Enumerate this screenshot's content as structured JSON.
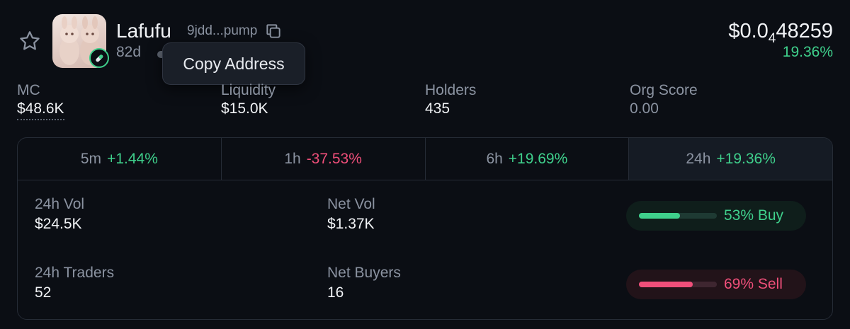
{
  "token": {
    "name": "Lafufu",
    "address": "9jdd...pump",
    "age": "82d",
    "price_main": "$0.0",
    "price_zero_count": "4",
    "price_tail": "48259",
    "price_change": "19.36%"
  },
  "tooltip": {
    "text": "Copy Address"
  },
  "stats": [
    {
      "label": "MC",
      "value": "$48.6K"
    },
    {
      "label": "Liquidity",
      "value": "$15.0K"
    },
    {
      "label": "Holders",
      "value": "435"
    },
    {
      "label": "Org Score",
      "value": "0.00"
    }
  ],
  "tabs": [
    {
      "period": "5m",
      "change": "+1.44%",
      "trend": "up"
    },
    {
      "period": "1h",
      "change": "-37.53%",
      "trend": "down"
    },
    {
      "period": "6h",
      "change": "+19.69%",
      "trend": "up"
    },
    {
      "period": "24h",
      "change": "+19.36%",
      "trend": "up",
      "active": true
    }
  ],
  "metrics": {
    "vol": {
      "label": "24h Vol",
      "value": "$24.5K"
    },
    "net_vol": {
      "label": "Net Vol",
      "value": "$1.37K"
    },
    "traders": {
      "label": "24h Traders",
      "value": "52"
    },
    "net_buyers": {
      "label": "Net Buyers",
      "value": "16"
    }
  },
  "ratios": {
    "buy": {
      "text": "53% Buy",
      "fraction": 0.53
    },
    "sell": {
      "text": "69% Sell",
      "fraction": 0.69
    }
  },
  "colors": {
    "background": "#0b0e14",
    "positive": "#3fd08c",
    "negative": "#f04f7a",
    "muted": "#8b93a1",
    "border": "#262c36"
  }
}
